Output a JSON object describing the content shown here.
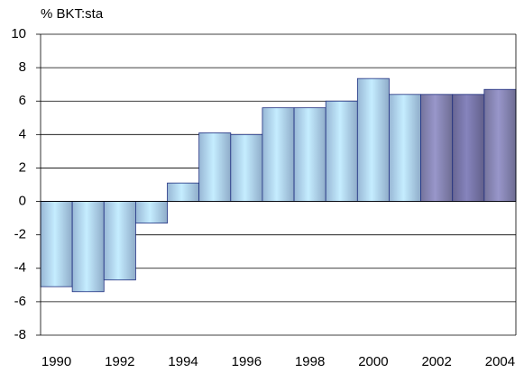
{
  "chart_data": {
    "type": "bar",
    "y_axis_label": "% BKT:sta",
    "categories": [
      "1990",
      null,
      "1992",
      null,
      "1994",
      null,
      "1996",
      null,
      "1998",
      null,
      "2000",
      null,
      "2002",
      null,
      "2004"
    ],
    "values": [
      -5.1,
      -5.4,
      -4.7,
      -1.3,
      1.1,
      4.1,
      4.0,
      5.6,
      5.6,
      6.0,
      7.35,
      6.4,
      6.4,
      6.4,
      6.7
    ],
    "colors": [
      "#b3d7fb",
      "#b3d7fb",
      "#b3d7fb",
      "#b3d7fb",
      "#b3d7fb",
      "#b3d7fb",
      "#b3d7fb",
      "#b3d7fb",
      "#b3d7fb",
      "#b3d7fb",
      "#b3d7fb",
      "#b3d7fb",
      "#8a88b8",
      "#7a78ac",
      "#8a88b8"
    ],
    "ylim": [
      -8,
      10
    ],
    "yticks": [
      -8,
      -6,
      -4,
      -2,
      0,
      2,
      4,
      6,
      8,
      10
    ],
    "grid": true
  }
}
